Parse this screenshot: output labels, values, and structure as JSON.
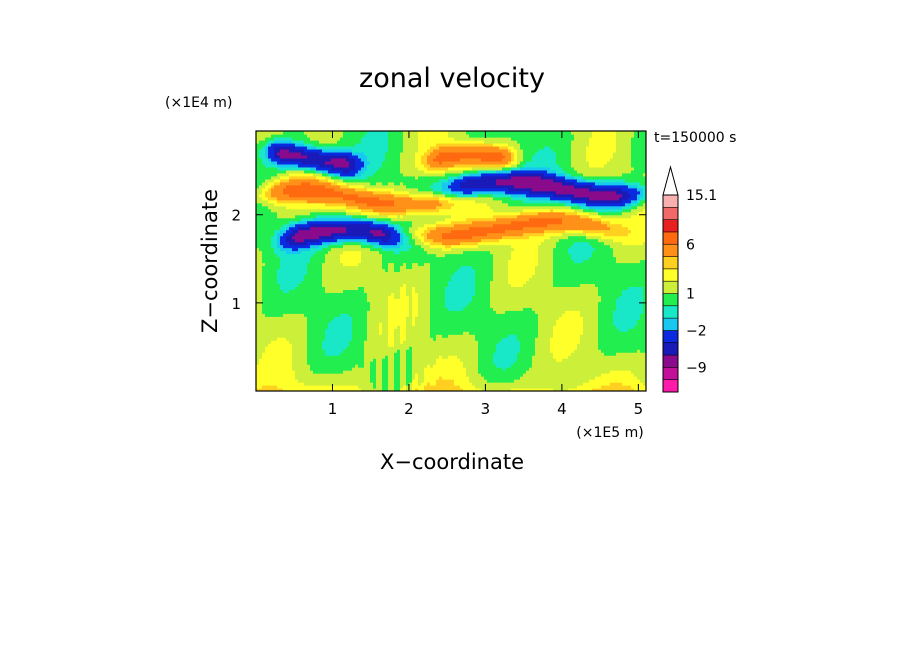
{
  "chart_data": {
    "type": "heatmap",
    "title": "zonal velocity",
    "xlabel": "X−coordinate",
    "ylabel": "Z−coordinate",
    "x_scale_label": "(×1E5 m)",
    "y_scale_label": "(×1E4 m)",
    "time_label": "t=150000 s",
    "xlim": [
      0,
      5.1
    ],
    "ylim": [
      0,
      2.95
    ],
    "x_ticks": [
      1,
      2,
      3,
      4,
      5
    ],
    "x_tick_labels": [
      "1",
      "2",
      "3",
      "4",
      "5"
    ],
    "y_ticks": [
      1,
      2
    ],
    "y_tick_labels": [
      "1",
      "2"
    ],
    "colorbar": {
      "levels": [
        -15,
        -12,
        -9,
        -6,
        -4,
        -2,
        -1,
        0,
        1,
        2,
        3,
        4,
        6,
        8,
        10,
        12.5,
        15.1
      ],
      "colors": [
        "#ff1aab",
        "#c2109a",
        "#8a0a8c",
        "#1a1ab8",
        "#0a2ae0",
        "#18c8f0",
        "#18e8c8",
        "#22ee50",
        "#ccf03a",
        "#ffff2a",
        "#ffd020",
        "#ff9018",
        "#ff6a10",
        "#e82020",
        "#f06868",
        "#f8b0b0"
      ],
      "labeled_levels": [
        15.1,
        6,
        1,
        -2,
        -9
      ],
      "labels": [
        "15.1",
        "6",
        "1",
        "−2",
        "−9"
      ],
      "extend": "max"
    },
    "features": [
      {
        "type": "negative_jet",
        "x": [
          0.25,
          1.25
        ],
        "z": 2.65,
        "min_value": -6
      },
      {
        "type": "positive_jet",
        "x": [
          0.2,
          2.5
        ],
        "z": 2.2,
        "max_value": 4
      },
      {
        "type": "negative_jet",
        "x": [
          0.45,
          1.75
        ],
        "z": 1.75,
        "min_value": -6
      },
      {
        "type": "negative_jet",
        "x": [
          2.6,
          4.9
        ],
        "z": 2.3,
        "min_value": -6
      },
      {
        "type": "positive_jet",
        "x": [
          2.2,
          4.6
        ],
        "z": 1.85,
        "max_value": 4
      },
      {
        "type": "positive_jet",
        "x": [
          2.3,
          3.3
        ],
        "z": 2.6,
        "max_value": 4
      }
    ]
  }
}
